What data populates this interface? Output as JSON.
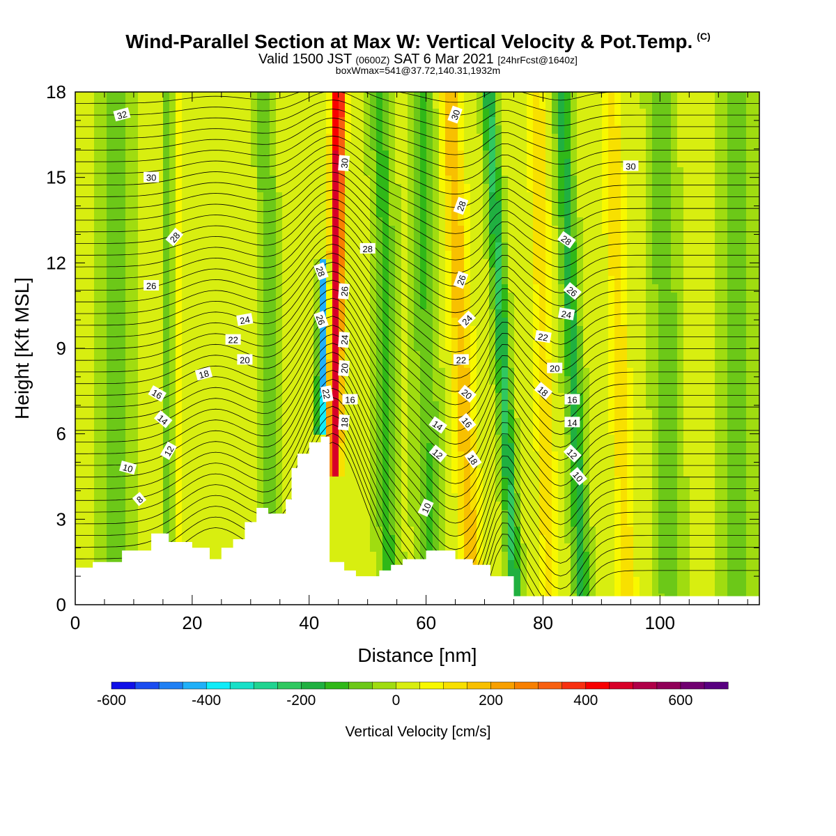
{
  "title": {
    "main": "Wind-Parallel Section at Max W: Vertical Velocity & Pot.Temp.",
    "copyright": "(C)",
    "valid_prefix": "Valid 1500 JST",
    "valid_utc": "(0600Z)",
    "valid_date": "SAT 6 Mar 2021",
    "forecast": "[24hrFcst@1640z]",
    "boxinfo": "boxWmax=541@37.72,140.31,1932m"
  },
  "chart_data": {
    "type": "heatmap",
    "xlabel": "Distance [nm]",
    "ylabel": "Height [Kft MSL]",
    "xlim": [
      0,
      117
    ],
    "ylim": [
      0,
      18
    ],
    "xticks": [
      0,
      20,
      40,
      60,
      80,
      100
    ],
    "yticks": [
      0,
      3,
      6,
      9,
      12,
      15,
      18
    ],
    "colorbar": {
      "label": "Vertical Velocity [cm/s]",
      "range": [
        -600,
        700
      ],
      "ticks": [
        -600,
        -400,
        -200,
        0,
        200,
        400,
        600
      ],
      "colors": [
        "#1010e8",
        "#1a4cf0",
        "#2080f4",
        "#20b0f8",
        "#10ecf8",
        "#18e0c8",
        "#20d490",
        "#30c860",
        "#20b040",
        "#30b818",
        "#6cc818",
        "#a0dc10",
        "#d8ee10",
        "#f8f800",
        "#f8e000",
        "#f8c000",
        "#f8a000",
        "#f88000",
        "#f86010",
        "#f83010",
        "#f80000",
        "#d80028",
        "#b00048",
        "#900058",
        "#700070",
        "#580080"
      ]
    },
    "terrain": [
      [
        0,
        1.3
      ],
      [
        3,
        1.3
      ],
      [
        3,
        1.5
      ],
      [
        8,
        1.5
      ],
      [
        8,
        1.9
      ],
      [
        13,
        1.9
      ],
      [
        13,
        2.5
      ],
      [
        16,
        2.5
      ],
      [
        16,
        2.2
      ],
      [
        20,
        2.2
      ],
      [
        20,
        2.0
      ],
      [
        23,
        2.0
      ],
      [
        23,
        1.6
      ],
      [
        25,
        1.6
      ],
      [
        25,
        2.0
      ],
      [
        27,
        2.0
      ],
      [
        27,
        2.3
      ],
      [
        29,
        2.3
      ],
      [
        29,
        2.9
      ],
      [
        31,
        2.9
      ],
      [
        31,
        3.4
      ],
      [
        33,
        3.4
      ],
      [
        33,
        3.2
      ],
      [
        36,
        3.2
      ],
      [
        36,
        3.7
      ],
      [
        37,
        3.7
      ],
      [
        37,
        4.8
      ],
      [
        38,
        4.8
      ],
      [
        38,
        5.3
      ],
      [
        40,
        5.3
      ],
      [
        40,
        5.7
      ],
      [
        42,
        5.7
      ],
      [
        42,
        5.9
      ],
      [
        43.5,
        5.9
      ],
      [
        43.5,
        1.5
      ],
      [
        46,
        1.5
      ],
      [
        46,
        1.2
      ],
      [
        48,
        1.2
      ],
      [
        48,
        1.0
      ],
      [
        52,
        1.0
      ],
      [
        52,
        1.2
      ],
      [
        54,
        1.2
      ],
      [
        54,
        1.4
      ],
      [
        56,
        1.4
      ],
      [
        56,
        1.6
      ],
      [
        60,
        1.6
      ],
      [
        60,
        1.9
      ],
      [
        65,
        1.9
      ],
      [
        65,
        1.6
      ],
      [
        68,
        1.6
      ],
      [
        68,
        1.4
      ],
      [
        71,
        1.4
      ],
      [
        71,
        1.0
      ],
      [
        75,
        1.0
      ],
      [
        75,
        0.3
      ],
      [
        117,
        0.3
      ]
    ],
    "theta_labels": [
      {
        "x": 8,
        "y": 17.2,
        "v": "32",
        "r": -15
      },
      {
        "x": 65,
        "y": 17.2,
        "v": "30",
        "r": -70
      },
      {
        "x": 46,
        "y": 15.5,
        "v": "30",
        "r": -85
      },
      {
        "x": 13,
        "y": 15.0,
        "v": "30",
        "r": 0
      },
      {
        "x": 95,
        "y": 15.4,
        "v": "30",
        "r": 0
      },
      {
        "x": 66,
        "y": 14.0,
        "v": "28",
        "r": -70
      },
      {
        "x": 17,
        "y": 12.9,
        "v": "28",
        "r": -50
      },
      {
        "x": 84,
        "y": 12.8,
        "v": "28",
        "r": 35
      },
      {
        "x": 50,
        "y": 12.5,
        "v": "28",
        "r": 0
      },
      {
        "x": 42,
        "y": 11.7,
        "v": "28",
        "r": 70
      },
      {
        "x": 13,
        "y": 11.2,
        "v": "26",
        "r": 0
      },
      {
        "x": 66,
        "y": 11.4,
        "v": "26",
        "r": -70
      },
      {
        "x": 46,
        "y": 11.0,
        "v": "26",
        "r": -85
      },
      {
        "x": 85,
        "y": 11.0,
        "v": "26",
        "r": 40
      },
      {
        "x": 29,
        "y": 10.0,
        "v": "24",
        "r": -10
      },
      {
        "x": 42,
        "y": 10.0,
        "v": "26",
        "r": 70
      },
      {
        "x": 67,
        "y": 10.0,
        "v": "24",
        "r": -45
      },
      {
        "x": 84,
        "y": 10.2,
        "v": "24",
        "r": 10
      },
      {
        "x": 27,
        "y": 9.3,
        "v": "22",
        "r": 0
      },
      {
        "x": 46,
        "y": 9.3,
        "v": "24",
        "r": -85
      },
      {
        "x": 80,
        "y": 9.4,
        "v": "22",
        "r": 10
      },
      {
        "x": 29,
        "y": 8.6,
        "v": "20",
        "r": 0
      },
      {
        "x": 66,
        "y": 8.6,
        "v": "22",
        "r": 0
      },
      {
        "x": 82,
        "y": 8.3,
        "v": "20",
        "r": 0
      },
      {
        "x": 46,
        "y": 8.3,
        "v": "20",
        "r": -85
      },
      {
        "x": 22,
        "y": 8.1,
        "v": "18",
        "r": -15
      },
      {
        "x": 14,
        "y": 7.4,
        "v": "16",
        "r": 30
      },
      {
        "x": 43,
        "y": 7.4,
        "v": "22",
        "r": 80
      },
      {
        "x": 67,
        "y": 7.4,
        "v": "20",
        "r": 40
      },
      {
        "x": 80,
        "y": 7.5,
        "v": "18",
        "r": 40
      },
      {
        "x": 47,
        "y": 7.2,
        "v": "16",
        "r": 0
      },
      {
        "x": 85,
        "y": 7.2,
        "v": "16",
        "r": 0
      },
      {
        "x": 15,
        "y": 6.5,
        "v": "14",
        "r": 40
      },
      {
        "x": 46,
        "y": 6.4,
        "v": "18",
        "r": -85
      },
      {
        "x": 62,
        "y": 6.3,
        "v": "14",
        "r": 35
      },
      {
        "x": 67,
        "y": 6.4,
        "v": "16",
        "r": 50
      },
      {
        "x": 85,
        "y": 6.4,
        "v": "14",
        "r": 0
      },
      {
        "x": 16,
        "y": 5.4,
        "v": "12",
        "r": -60
      },
      {
        "x": 62,
        "y": 5.3,
        "v": "12",
        "r": 40
      },
      {
        "x": 68,
        "y": 5.1,
        "v": "18",
        "r": 55
      },
      {
        "x": 85,
        "y": 5.3,
        "v": "12",
        "r": 45
      },
      {
        "x": 9,
        "y": 4.8,
        "v": "10",
        "r": 15
      },
      {
        "x": 86,
        "y": 4.5,
        "v": "10",
        "r": 50
      },
      {
        "x": 60,
        "y": 3.4,
        "v": "10",
        "r": -65
      },
      {
        "x": 11,
        "y": 3.7,
        "v": "8",
        "r": -40
      }
    ]
  }
}
